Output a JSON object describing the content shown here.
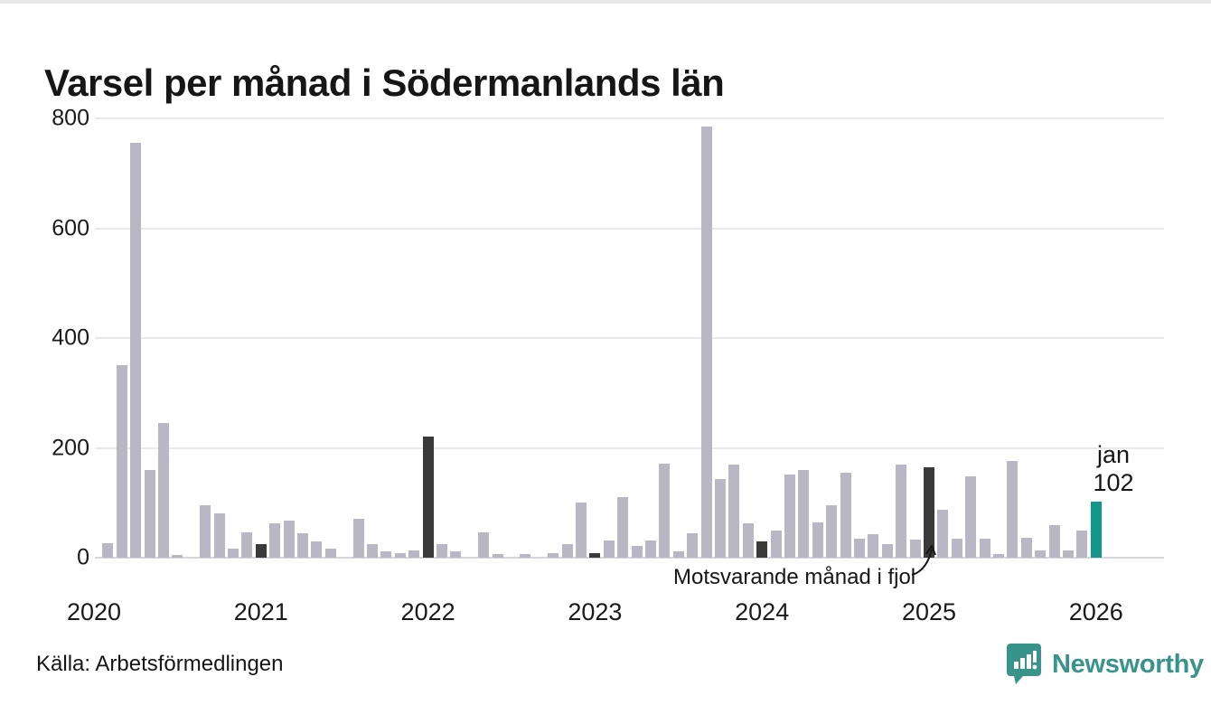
{
  "title": "Varsel per månad i Södermanlands län",
  "annotation": {
    "label": "Motsvarande månad i fjol",
    "target_month": "2025-01"
  },
  "current_point_label": {
    "line1": "jan",
    "line2": "102"
  },
  "footer": {
    "source": "Källa: Arbetsförmedlingen",
    "brand": "Newsworthy"
  },
  "colors": {
    "bar_default": "#b9b7c3",
    "bar_prior_january": "#3a3a3a",
    "bar_current": "#12988a",
    "brand_teal": "#38938b",
    "gridline": "#e9e9ec",
    "zero_line": "#d5d5da",
    "text": "#161616"
  },
  "chart_data": {
    "type": "bar",
    "title": "Varsel per månad i Södermanlands län",
    "xlabel": "",
    "ylabel": "",
    "ylim": [
      0,
      800
    ],
    "yticks": [
      0,
      200,
      400,
      600,
      800
    ],
    "xticks": [
      "2020",
      "2021",
      "2022",
      "2023",
      "2024",
      "2025",
      "2026"
    ],
    "grid": "horizontal",
    "legend_position": "none",
    "highlight_months_dark": [
      "2021-01",
      "2022-01",
      "2023-01",
      "2024-01",
      "2025-01"
    ],
    "current_month": {
      "month": "2026-01",
      "label": "jan",
      "value": 102
    },
    "months": [
      {
        "month": "2020-01",
        "value": 0
      },
      {
        "month": "2020-02",
        "value": 26
      },
      {
        "month": "2020-03",
        "value": 350
      },
      {
        "month": "2020-04",
        "value": 755
      },
      {
        "month": "2020-05",
        "value": 160
      },
      {
        "month": "2020-06",
        "value": 245
      },
      {
        "month": "2020-07",
        "value": 5
      },
      {
        "month": "2020-08",
        "value": 0
      },
      {
        "month": "2020-09",
        "value": 96
      },
      {
        "month": "2020-10",
        "value": 80
      },
      {
        "month": "2020-11",
        "value": 17
      },
      {
        "month": "2020-12",
        "value": 46
      },
      {
        "month": "2021-01",
        "value": 25
      },
      {
        "month": "2021-02",
        "value": 62
      },
      {
        "month": "2021-03",
        "value": 67
      },
      {
        "month": "2021-04",
        "value": 44
      },
      {
        "month": "2021-05",
        "value": 29
      },
      {
        "month": "2021-06",
        "value": 16
      },
      {
        "month": "2021-07",
        "value": 0
      },
      {
        "month": "2021-08",
        "value": 71
      },
      {
        "month": "2021-09",
        "value": 25
      },
      {
        "month": "2021-10",
        "value": 12
      },
      {
        "month": "2021-11",
        "value": 9
      },
      {
        "month": "2021-12",
        "value": 13
      },
      {
        "month": "2022-01",
        "value": 220
      },
      {
        "month": "2022-02",
        "value": 25
      },
      {
        "month": "2022-03",
        "value": 11
      },
      {
        "month": "2022-04",
        "value": 0
      },
      {
        "month": "2022-05",
        "value": 46
      },
      {
        "month": "2022-06",
        "value": 6
      },
      {
        "month": "2022-07",
        "value": 0
      },
      {
        "month": "2022-08",
        "value": 7
      },
      {
        "month": "2022-09",
        "value": 0
      },
      {
        "month": "2022-10",
        "value": 8
      },
      {
        "month": "2022-11",
        "value": 25
      },
      {
        "month": "2022-12",
        "value": 101
      },
      {
        "month": "2023-01",
        "value": 9
      },
      {
        "month": "2023-02",
        "value": 31
      },
      {
        "month": "2023-03",
        "value": 111
      },
      {
        "month": "2023-04",
        "value": 21
      },
      {
        "month": "2023-05",
        "value": 32
      },
      {
        "month": "2023-06",
        "value": 172
      },
      {
        "month": "2023-07",
        "value": 11
      },
      {
        "month": "2023-08",
        "value": 44
      },
      {
        "month": "2023-09",
        "value": 785
      },
      {
        "month": "2023-10",
        "value": 144
      },
      {
        "month": "2023-11",
        "value": 169
      },
      {
        "month": "2023-12",
        "value": 62
      },
      {
        "month": "2024-01",
        "value": 29
      },
      {
        "month": "2024-02",
        "value": 50
      },
      {
        "month": "2024-03",
        "value": 152
      },
      {
        "month": "2024-04",
        "value": 160
      },
      {
        "month": "2024-05",
        "value": 65
      },
      {
        "month": "2024-06",
        "value": 95
      },
      {
        "month": "2024-07",
        "value": 154
      },
      {
        "month": "2024-08",
        "value": 35
      },
      {
        "month": "2024-09",
        "value": 43
      },
      {
        "month": "2024-10",
        "value": 24
      },
      {
        "month": "2024-11",
        "value": 170
      },
      {
        "month": "2024-12",
        "value": 33
      },
      {
        "month": "2025-01",
        "value": 165
      },
      {
        "month": "2025-02",
        "value": 88
      },
      {
        "month": "2025-03",
        "value": 35
      },
      {
        "month": "2025-04",
        "value": 149
      },
      {
        "month": "2025-05",
        "value": 35
      },
      {
        "month": "2025-06",
        "value": 7
      },
      {
        "month": "2025-07",
        "value": 176
      },
      {
        "month": "2025-08",
        "value": 37
      },
      {
        "month": "2025-09",
        "value": 13
      },
      {
        "month": "2025-10",
        "value": 60
      },
      {
        "month": "2025-11",
        "value": 13
      },
      {
        "month": "2025-12",
        "value": 50
      },
      {
        "month": "2026-01",
        "value": 102
      }
    ]
  }
}
